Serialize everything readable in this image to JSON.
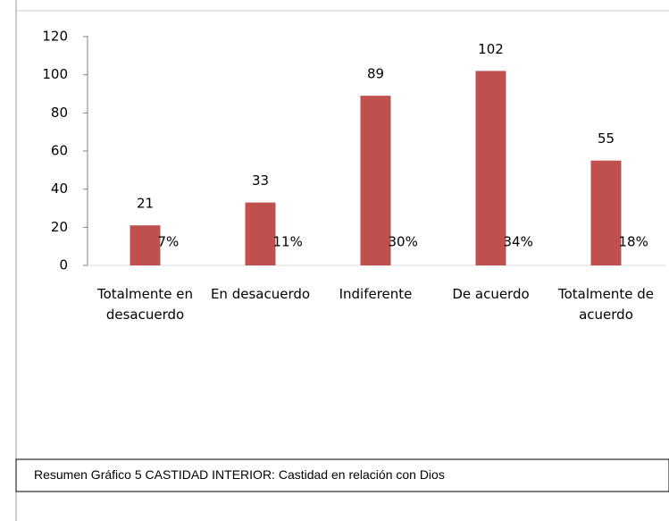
{
  "chart_data": {
    "type": "bar",
    "categories": [
      "Totalmente en desacuerdo",
      "En desacuerdo",
      "Indiferente",
      "De acuerdo",
      "Totalmente de acuerdo"
    ],
    "values": [
      21,
      33,
      89,
      102,
      55
    ],
    "percent_labels": [
      "7%",
      "11%",
      "30%",
      "34%",
      "18%"
    ],
    "color": "#c0504d",
    "ylim": [
      0,
      120
    ],
    "yticks": [
      0,
      20,
      40,
      60,
      80,
      100,
      120
    ],
    "grid": false,
    "caption": "Resumen Gráfico 5 CASTIDAD INTERIOR:  Castidad en relación con Dios"
  }
}
